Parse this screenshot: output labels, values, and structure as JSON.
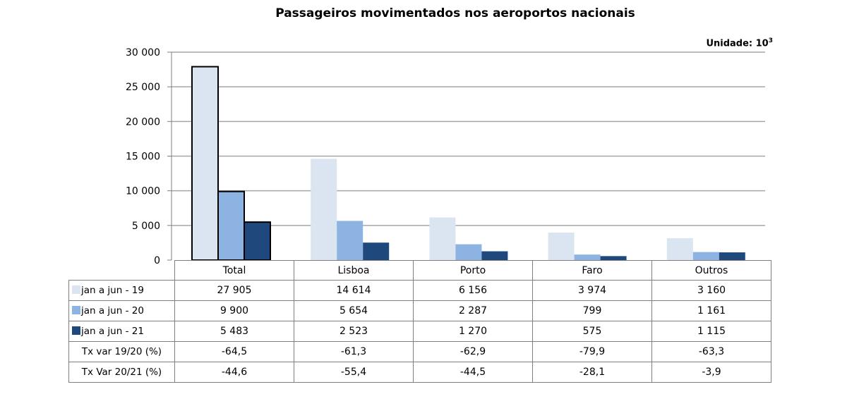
{
  "chart_data": {
    "type": "bar",
    "title": "Passageiros movimentados nos aeroportos nacionais",
    "unit_label": "Unidade: 10",
    "unit_exponent": "3",
    "categories": [
      "Total",
      "Lisboa",
      "Porto",
      "Faro",
      "Outros"
    ],
    "series": [
      {
        "name": "jan a jun - 19",
        "color": "#dbe5f1",
        "values": [
          27905,
          14614,
          6156,
          3974,
          3160
        ],
        "display": [
          "27 905",
          "14 614",
          "6 156",
          "3 974",
          "3 160"
        ]
      },
      {
        "name": "jan a jun - 20",
        "color": "#8db3e2",
        "values": [
          9900,
          5654,
          2287,
          799,
          1161
        ],
        "display": [
          "9 900",
          "5 654",
          "2 287",
          "799",
          "1 161"
        ]
      },
      {
        "name": "jan a jun - 21",
        "color": "#1f497d",
        "values": [
          5483,
          2523,
          1270,
          575,
          1115
        ],
        "display": [
          "5 483",
          "2 523",
          "1 270",
          "575",
          "1 115"
        ]
      }
    ],
    "rate_rows": [
      {
        "label": "Tx var 19/20 (%)",
        "values": [
          "-64,5",
          "-61,3",
          "-62,9",
          "-79,9",
          "-63,3"
        ]
      },
      {
        "label": "Tx Var 20/21 (%)",
        "values": [
          "-44,6",
          "-55,4",
          "-44,5",
          "-28,1",
          "-3,9"
        ]
      }
    ],
    "ylim": [
      0,
      30000
    ],
    "yticks": [
      0,
      5000,
      10000,
      15000,
      20000,
      25000,
      30000
    ],
    "ytick_labels": [
      "0",
      "5 000",
      "10 000",
      "15 000",
      "20 000",
      "25 000",
      "30 000"
    ],
    "highlighted_category": "Total",
    "grid": true,
    "legend": "data-table"
  }
}
